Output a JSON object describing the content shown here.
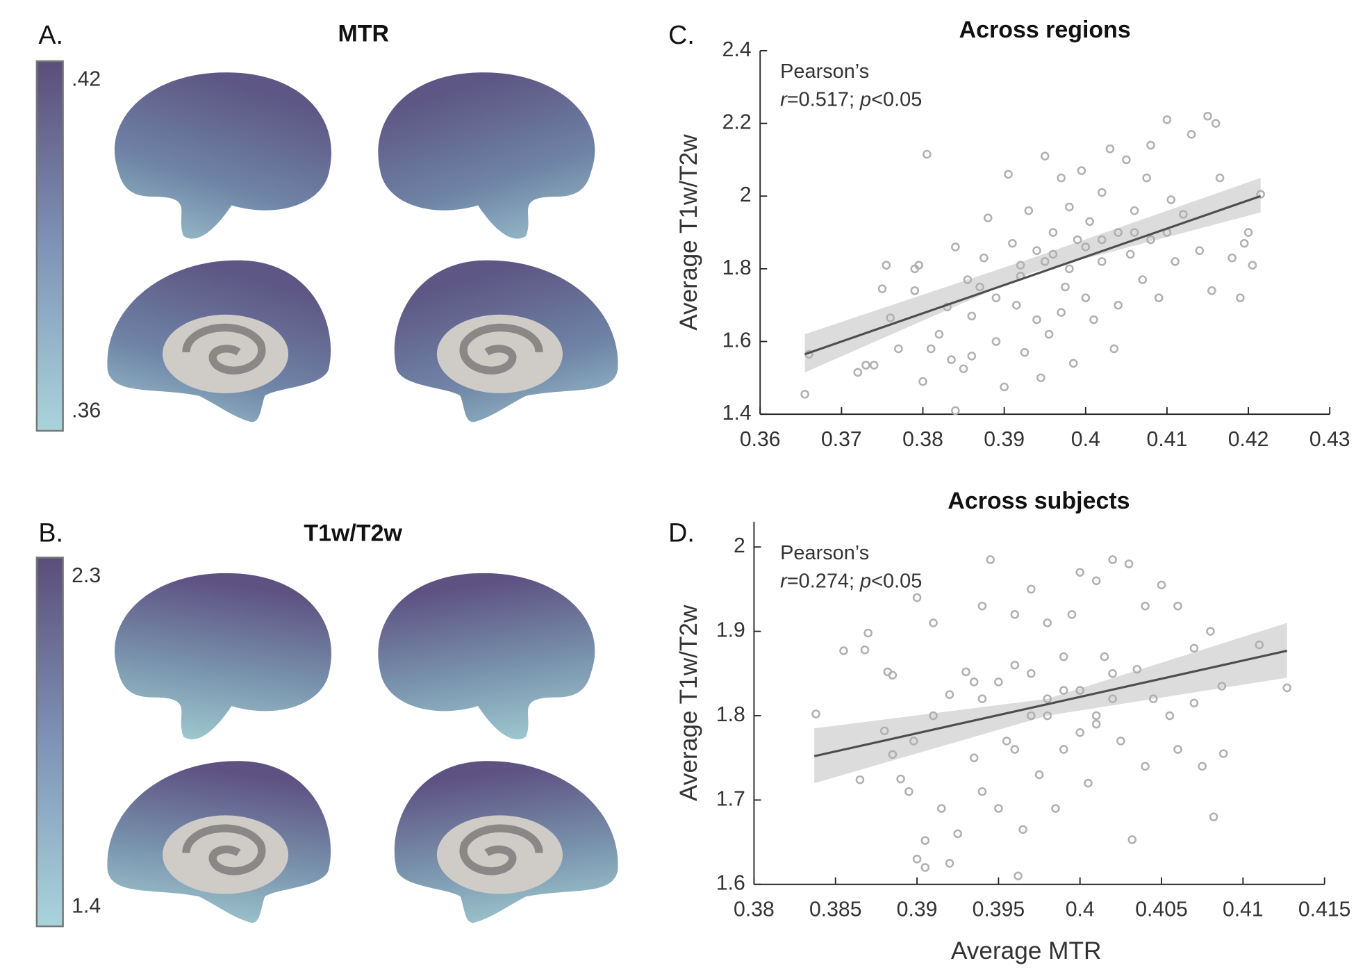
{
  "chart_data": [
    {
      "type": "brain-map",
      "panel": "A.",
      "title": "MTR",
      "clim": [
        0.36,
        0.42
      ],
      "cticks": [
        {
          "value": 0.42,
          "label": ".42"
        },
        {
          "value": 0.36,
          "label": ".36"
        }
      ],
      "colors": [
        "#a9d4dc",
        "#7f93b6",
        "#5b4e7a"
      ]
    },
    {
      "type": "brain-map",
      "panel": "B.",
      "title": "T1w/T2w",
      "clim": [
        1.4,
        2.3
      ],
      "cticks": [
        2.3,
        1.4
      ],
      "colors": [
        "#a9d4dc",
        "#7f93b6",
        "#5b4e7a"
      ]
    },
    {
      "type": "scatter",
      "panel": "C.",
      "title": "Across regions",
      "ylabel": "Average T1w/T2w",
      "annotation": {
        "line1": "Pearson’s",
        "line2": [
          "r",
          "=0.517; ",
          "p",
          "<0.05"
        ]
      },
      "xlim": [
        0.36,
        0.43
      ],
      "xticks": [
        0.36,
        0.37,
        0.38,
        0.39,
        0.4,
        0.41,
        0.42,
        0.43
      ],
      "ylim": [
        1.4,
        2.4
      ],
      "yticks": [
        1.4,
        1.6,
        1.8,
        2,
        2.2,
        2.4
      ],
      "color": "#b0b0b0",
      "x": [
        0.3655,
        0.366,
        0.372,
        0.373,
        0.374,
        0.375,
        0.3755,
        0.376,
        0.377,
        0.379,
        0.3795,
        0.379,
        0.38,
        0.3805,
        0.381,
        0.382,
        0.383,
        0.3835,
        0.384,
        0.384,
        0.385,
        0.3855,
        0.386,
        0.387,
        0.3875,
        0.388,
        0.389,
        0.39,
        0.3905,
        0.391,
        0.3915,
        0.392,
        0.3925,
        0.393,
        0.394,
        0.3945,
        0.395,
        0.395,
        0.3955,
        0.396,
        0.397,
        0.3975,
        0.398,
        0.3985,
        0.399,
        0.3995,
        0.4,
        0.4005,
        0.401,
        0.402,
        0.402,
        0.403,
        0.4035,
        0.404,
        0.404,
        0.405,
        0.4055,
        0.406,
        0.407,
        0.4075,
        0.408,
        0.408,
        0.409,
        0.41,
        0.4105,
        0.411,
        0.412,
        0.413,
        0.414,
        0.415,
        0.4155,
        0.416,
        0.4165,
        0.418,
        0.419,
        0.4195,
        0.42,
        0.4205,
        0.4215,
        0.402,
        0.398,
        0.396,
        0.392,
        0.389,
        0.406,
        0.4,
        0.394,
        0.386,
        0.41,
        0.397
      ],
      "values": [
        1.455,
        1.565,
        1.515,
        1.535,
        1.535,
        1.745,
        1.81,
        1.665,
        1.58,
        1.8,
        1.81,
        1.74,
        1.49,
        2.115,
        1.58,
        1.62,
        1.695,
        1.55,
        1.41,
        1.86,
        1.525,
        1.77,
        1.67,
        1.75,
        1.83,
        1.94,
        1.6,
        1.475,
        2.06,
        1.87,
        1.7,
        1.78,
        1.57,
        1.96,
        1.85,
        1.5,
        2.11,
        1.82,
        1.62,
        1.9,
        2.05,
        1.75,
        1.97,
        1.54,
        1.88,
        2.07,
        1.72,
        1.93,
        1.66,
        2.01,
        1.82,
        2.13,
        1.58,
        1.9,
        1.7,
        2.1,
        1.84,
        1.96,
        1.77,
        2.05,
        2.14,
        1.88,
        1.72,
        2.21,
        1.99,
        1.82,
        1.95,
        2.17,
        1.85,
        2.22,
        1.74,
        2.2,
        2.05,
        1.83,
        1.72,
        1.87,
        1.9,
        1.81,
        2.005,
        1.88,
        1.8,
        1.84,
        1.81,
        1.72,
        1.9,
        1.86,
        1.66,
        1.56,
        1.9,
        1.68
      ],
      "fit": {
        "x": [
          0.3655,
          0.4215
        ],
        "values": [
          1.565,
          2.0
        ],
        "color": "#4d4d4d"
      },
      "ci": {
        "x": [
          0.3655,
          0.3935,
          0.4215
        ],
        "lower": [
          1.515,
          1.79,
          1.955
        ],
        "upper": [
          1.62,
          1.83,
          2.05
        ],
        "color": "#dcdcdc"
      }
    },
    {
      "type": "scatter",
      "panel": "D.",
      "title": "Across subjects",
      "ylabel": "Average T1w/T2w",
      "xlabel": "Average MTR",
      "annotation": {
        "line1": "Pearson’s",
        "line2": [
          "r",
          "=0.274; ",
          "p",
          "<0.05"
        ]
      },
      "xlim": [
        0.38,
        0.415
      ],
      "xticks": [
        0.38,
        0.385,
        0.39,
        0.395,
        0.4,
        0.405,
        0.41,
        0.415
      ],
      "ylim": [
        1.6,
        2.03
      ],
      "yticks": [
        1.6,
        1.7,
        1.8,
        1.9,
        2
      ],
      "color": "#b0b0b0",
      "x": [
        0.3838,
        0.3855,
        0.3865,
        0.3868,
        0.387,
        0.388,
        0.3882,
        0.3885,
        0.3885,
        0.389,
        0.3895,
        0.3898,
        0.39,
        0.39,
        0.3905,
        0.3905,
        0.391,
        0.391,
        0.3915,
        0.392,
        0.392,
        0.3925,
        0.393,
        0.3935,
        0.394,
        0.394,
        0.394,
        0.3945,
        0.395,
        0.395,
        0.3955,
        0.396,
        0.396,
        0.3962,
        0.3965,
        0.397,
        0.397,
        0.3975,
        0.398,
        0.398,
        0.3985,
        0.399,
        0.399,
        0.3995,
        0.4,
        0.4,
        0.4005,
        0.401,
        0.401,
        0.4015,
        0.402,
        0.402,
        0.4025,
        0.403,
        0.4032,
        0.4035,
        0.404,
        0.404,
        0.4045,
        0.405,
        0.4055,
        0.406,
        0.406,
        0.407,
        0.407,
        0.4075,
        0.408,
        0.4082,
        0.4087,
        0.4088,
        0.411,
        0.4127,
        0.396,
        0.399,
        0.401,
        0.398,
        0.3935,
        0.402,
        0.4,
        0.397
      ],
      "values": [
        1.802,
        1.877,
        1.724,
        1.878,
        1.898,
        1.782,
        1.852,
        1.754,
        1.848,
        1.725,
        1.71,
        1.77,
        1.94,
        1.63,
        1.652,
        1.62,
        1.91,
        1.8,
        1.69,
        1.625,
        1.825,
        1.66,
        1.852,
        1.75,
        1.93,
        1.82,
        1.71,
        1.985,
        1.84,
        1.69,
        1.77,
        1.92,
        1.76,
        1.61,
        1.665,
        1.95,
        1.85,
        1.73,
        1.91,
        1.8,
        1.69,
        1.87,
        1.76,
        1.92,
        1.97,
        1.83,
        1.72,
        1.96,
        1.79,
        1.87,
        1.985,
        1.82,
        1.77,
        1.98,
        1.653,
        1.855,
        1.93,
        1.74,
        1.82,
        1.955,
        1.8,
        1.93,
        1.76,
        1.88,
        1.815,
        1.74,
        1.9,
        1.68,
        1.835,
        1.755,
        1.884,
        1.833,
        1.86,
        1.83,
        1.8,
        1.82,
        1.84,
        1.85,
        1.78,
        1.8
      ],
      "fit": {
        "x": [
          0.3837,
          0.4127
        ],
        "values": [
          1.752,
          1.877
        ],
        "color": "#4d4d4d"
      },
      "ci": {
        "x": [
          0.3837,
          0.398,
          0.4127
        ],
        "lower": [
          1.72,
          1.8,
          1.845
        ],
        "upper": [
          1.785,
          1.82,
          1.91
        ],
        "color": "#dcdcdc"
      }
    }
  ]
}
